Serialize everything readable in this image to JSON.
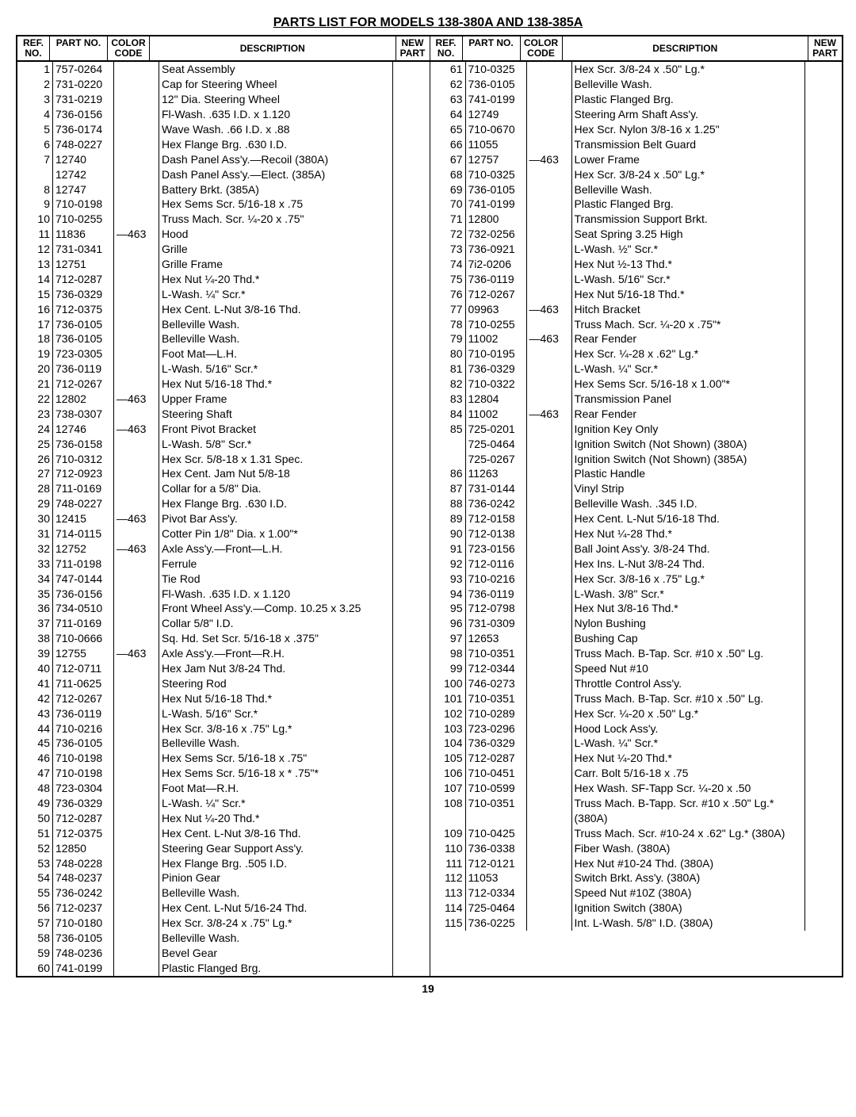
{
  "title": "PARTS LIST FOR MODELS 138-380A AND 138-385A",
  "page_number": "19",
  "headers": {
    "ref": "REF.\nNO.",
    "part": "PART\nNO.",
    "color": "COLOR\nCODE",
    "desc": "DESCRIPTION",
    "new": "NEW\nPART"
  },
  "left_rows": [
    {
      "ref": "1",
      "part": "757-0264",
      "color": "",
      "desc": "Seat Assembly"
    },
    {
      "ref": "2",
      "part": "731-0220",
      "color": "",
      "desc": "Cap for Steering Wheel"
    },
    {
      "ref": "3",
      "part": "731-0219",
      "color": "",
      "desc": "12\" Dia. Steering Wheel"
    },
    {
      "ref": "4",
      "part": "736-0156",
      "color": "",
      "desc": "Fl-Wash. .635 I.D. x 1.120"
    },
    {
      "ref": "5",
      "part": "736-0174",
      "color": "",
      "desc": "Wave Wash. .66 I.D. x .88"
    },
    {
      "ref": "6",
      "part": "748-0227",
      "color": "",
      "desc": "Hex Flange Brg. .630 I.D."
    },
    {
      "ref": "7",
      "part": "12740",
      "color": "",
      "desc": "Dash Panel Ass'y.—Recoil (380A)"
    },
    {
      "ref": "",
      "part": "12742",
      "color": "",
      "desc": "Dash Panel Ass'y.—Elect. (385A)"
    },
    {
      "ref": "8",
      "part": "12747",
      "color": "",
      "desc": "Battery Brkt. (385A)"
    },
    {
      "ref": "9",
      "part": "710-0198",
      "color": "",
      "desc": "Hex Sems Scr. 5/16-18 x .75"
    },
    {
      "ref": "10",
      "part": "710-0255",
      "color": "",
      "desc": "Truss Mach. Scr. ¼-20 x .75\""
    },
    {
      "ref": "11",
      "part": "11836",
      "color": "—463",
      "desc": "Hood"
    },
    {
      "ref": "12",
      "part": "731-0341",
      "color": "",
      "desc": "Grille"
    },
    {
      "ref": "13",
      "part": "12751",
      "color": "",
      "desc": "Grille Frame"
    },
    {
      "ref": "14",
      "part": "712-0287",
      "color": "",
      "desc": "Hex Nut ¼-20 Thd.*"
    },
    {
      "ref": "15",
      "part": "736-0329",
      "color": "",
      "desc": "L-Wash. ¼\" Scr.*"
    },
    {
      "ref": "16",
      "part": "712-0375",
      "color": "",
      "desc": "Hex Cent. L-Nut 3/8-16 Thd."
    },
    {
      "ref": "17",
      "part": "736-0105",
      "color": "",
      "desc": "Belleville Wash."
    },
    {
      "ref": "18",
      "part": "736-0105",
      "color": "",
      "desc": "Belleville Wash."
    },
    {
      "ref": "19",
      "part": "723-0305",
      "color": "",
      "desc": "Foot Mat—L.H."
    },
    {
      "ref": "20",
      "part": "736-0119",
      "color": "",
      "desc": "L-Wash. 5/16\" Scr.*"
    },
    {
      "ref": "21",
      "part": "712-0267",
      "color": "",
      "desc": "Hex Nut 5/16-18 Thd.*"
    },
    {
      "ref": "22",
      "part": "12802",
      "color": "—463",
      "desc": "Upper Frame"
    },
    {
      "ref": "23",
      "part": "738-0307",
      "color": "",
      "desc": "Steering Shaft"
    },
    {
      "ref": "24",
      "part": "12746",
      "color": "—463",
      "desc": "Front Pivot Bracket"
    },
    {
      "ref": "25",
      "part": "736-0158",
      "color": "",
      "desc": "L-Wash. 5/8\" Scr.*"
    },
    {
      "ref": "26",
      "part": "710-0312",
      "color": "",
      "desc": "Hex Scr. 5/8-18 x 1.31 Spec."
    },
    {
      "ref": "27",
      "part": "712-0923",
      "color": "",
      "desc": "Hex Cent. Jam Nut 5/8-18"
    },
    {
      "ref": "28",
      "part": "711-0169",
      "color": "",
      "desc": "Collar for a 5/8\" Dia."
    },
    {
      "ref": "29",
      "part": "748-0227",
      "color": "",
      "desc": "Hex Flange Brg. .630 I.D."
    },
    {
      "ref": "30",
      "part": "12415",
      "color": "—463",
      "desc": "Pivot Bar Ass'y."
    },
    {
      "ref": "31",
      "part": "714-0115",
      "color": "",
      "desc": "Cotter Pin 1/8\" Dia. x 1.00\"*"
    },
    {
      "ref": "32",
      "part": "12752",
      "color": "—463",
      "desc": "Axle Ass'y.—Front—L.H."
    },
    {
      "ref": "33",
      "part": "711-0198",
      "color": "",
      "desc": "Ferrule"
    },
    {
      "ref": "34",
      "part": "747-0144",
      "color": "",
      "desc": "Tie Rod"
    },
    {
      "ref": "35",
      "part": "736-0156",
      "color": "",
      "desc": "Fl-Wash. .635 I.D. x 1.120"
    },
    {
      "ref": "36",
      "part": "734-0510",
      "color": "",
      "desc": "Front Wheel Ass'y.—Comp. 10.25 x 3.25"
    },
    {
      "ref": "37",
      "part": "711-0169",
      "color": "",
      "desc": "Collar 5/8\" I.D."
    },
    {
      "ref": "38",
      "part": "710-0666",
      "color": "",
      "desc": "Sq. Hd. Set Scr. 5/16-18 x .375\""
    },
    {
      "ref": "39",
      "part": "12755",
      "color": "—463",
      "desc": "Axle Ass'y.—Front—R.H."
    },
    {
      "ref": "40",
      "part": "712-0711",
      "color": "",
      "desc": "Hex Jam Nut 3/8-24 Thd."
    },
    {
      "ref": "41",
      "part": "711-0625",
      "color": "",
      "desc": "Steering Rod"
    },
    {
      "ref": "42",
      "part": "712-0267",
      "color": "",
      "desc": "Hex Nut 5/16-18 Thd.*"
    },
    {
      "ref": "43",
      "part": "736-0119",
      "color": "",
      "desc": "L-Wash. 5/16\" Scr.*"
    },
    {
      "ref": "44",
      "part": "710-0216",
      "color": "",
      "desc": "Hex Scr. 3/8-16 x .75\" Lg.*"
    },
    {
      "ref": "45",
      "part": "736-0105",
      "color": "",
      "desc": "Belleville Wash."
    },
    {
      "ref": "46",
      "part": "710-0198",
      "color": "",
      "desc": "Hex Sems Scr. 5/16-18 x .75\""
    },
    {
      "ref": "47",
      "part": "710-0198",
      "color": "",
      "desc": "Hex Sems Scr. 5/16-18 x * .75\"*"
    },
    {
      "ref": "48",
      "part": "723-0304",
      "color": "",
      "desc": "Foot Mat—R.H."
    },
    {
      "ref": "49",
      "part": "736-0329",
      "color": "",
      "desc": "L-Wash. ¼\" Scr.*"
    },
    {
      "ref": "50",
      "part": "712-0287",
      "color": "",
      "desc": "Hex Nut ¼-20 Thd.*"
    },
    {
      "ref": "51",
      "part": "712-0375",
      "color": "",
      "desc": "Hex Cent. L-Nut 3/8-16 Thd."
    },
    {
      "ref": "52",
      "part": "12850",
      "color": "",
      "desc": "Steering Gear Support Ass'y."
    },
    {
      "ref": "53",
      "part": "748-0228",
      "color": "",
      "desc": "Hex Flange Brg. .505 I.D."
    },
    {
      "ref": "54",
      "part": "748-0237",
      "color": "",
      "desc": "Pinion Gear"
    },
    {
      "ref": "55",
      "part": "736-0242",
      "color": "",
      "desc": "Belleville Wash."
    },
    {
      "ref": "56",
      "part": "712-0237",
      "color": "",
      "desc": "Hex Cent. L-Nut 5/16-24 Thd."
    },
    {
      "ref": "57",
      "part": "710-0180",
      "color": "",
      "desc": "Hex Scr. 3/8-24 x .75\" Lg.*"
    },
    {
      "ref": "58",
      "part": "736-0105",
      "color": "",
      "desc": "Belleville Wash."
    },
    {
      "ref": "59",
      "part": "748-0236",
      "color": "",
      "desc": "Bevel Gear"
    },
    {
      "ref": "60",
      "part": "741-0199",
      "color": "",
      "desc": "Plastic Flanged Brg."
    }
  ],
  "right_rows": [
    {
      "ref": "61",
      "part": "710-0325",
      "color": "",
      "desc": "Hex Scr. 3/8-24 x .50\" Lg.*"
    },
    {
      "ref": "62",
      "part": "736-0105",
      "color": "",
      "desc": "Belleville Wash."
    },
    {
      "ref": "63",
      "part": "741-0199",
      "color": "",
      "desc": "Plastic Flanged Brg."
    },
    {
      "ref": "64",
      "part": "12749",
      "color": "",
      "desc": "Steering Arm Shaft Ass'y."
    },
    {
      "ref": "65",
      "part": "710-0670",
      "color": "",
      "desc": "Hex Scr. Nylon 3/8-16 x 1.25\""
    },
    {
      "ref": "66",
      "part": "11055",
      "color": "",
      "desc": "Transmission Belt Guard"
    },
    {
      "ref": "67",
      "part": "12757",
      "color": "—463",
      "desc": "Lower Frame"
    },
    {
      "ref": "68",
      "part": "710-0325",
      "color": "",
      "desc": "Hex Scr. 3/8-24 x .50\" Lg.*"
    },
    {
      "ref": "69",
      "part": "736-0105",
      "color": "",
      "desc": "Belleville Wash."
    },
    {
      "ref": "70",
      "part": "741-0199",
      "color": "",
      "desc": "Plastic Flanged Brg."
    },
    {
      "ref": "71",
      "part": "12800",
      "color": "",
      "desc": "Transmission Support Brkt."
    },
    {
      "ref": "72",
      "part": "732-0256",
      "color": "",
      "desc": "Seat Spring 3.25 High"
    },
    {
      "ref": "73",
      "part": "736-0921",
      "color": "",
      "desc": "L-Wash. ½\" Scr.*"
    },
    {
      "ref": "74",
      "part": "7i2-0206",
      "color": "",
      "desc": "Hex Nut ½-13 Thd.*"
    },
    {
      "ref": "75",
      "part": "736-0119",
      "color": "",
      "desc": "L-Wash. 5/16\" Scr.*"
    },
    {
      "ref": "76",
      "part": "712-0267",
      "color": "",
      "desc": "Hex Nut 5/16-18 Thd.*"
    },
    {
      "ref": "77",
      "part": "09963",
      "color": "—463",
      "desc": "Hitch Bracket"
    },
    {
      "ref": "78",
      "part": "710-0255",
      "color": "",
      "desc": "Truss Mach. Scr. ¼-20 x .75\"*"
    },
    {
      "ref": "79",
      "part": "11002",
      "color": "—463",
      "desc": "Rear Fender"
    },
    {
      "ref": "80",
      "part": "710-0195",
      "color": "",
      "desc": "Hex Scr. ¼-28 x .62\" Lg.*"
    },
    {
      "ref": "81",
      "part": "736-0329",
      "color": "",
      "desc": "L-Wash. ¼\" Scr.*"
    },
    {
      "ref": "82",
      "part": "710-0322",
      "color": "",
      "desc": "Hex Sems Scr. 5/16-18 x 1.00\"*"
    },
    {
      "ref": "83",
      "part": "12804",
      "color": "",
      "desc": "Transmission Panel"
    },
    {
      "ref": "84",
      "part": "11002",
      "color": "—463",
      "desc": "Rear Fender"
    },
    {
      "ref": "85",
      "part": "725-0201",
      "color": "",
      "desc": "Ignition Key Only"
    },
    {
      "ref": "",
      "part": "725-0464",
      "color": "",
      "desc": "Ignition Switch (Not Shown) (380A)"
    },
    {
      "ref": "",
      "part": "725-0267",
      "color": "",
      "desc": "Ignition Switch (Not Shown) (385A)"
    },
    {
      "ref": "86",
      "part": "11263",
      "color": "",
      "desc": "Plastic Handle"
    },
    {
      "ref": "87",
      "part": "731-0144",
      "color": "",
      "desc": "Vinyl Strip"
    },
    {
      "ref": "88",
      "part": "736-0242",
      "color": "",
      "desc": "Belleville Wash. .345 I.D."
    },
    {
      "ref": "89",
      "part": "712-0158",
      "color": "",
      "desc": "Hex Cent. L-Nut 5/16-18 Thd."
    },
    {
      "ref": "90",
      "part": "712-0138",
      "color": "",
      "desc": "Hex Nut ¼-28 Thd.*"
    },
    {
      "ref": "91",
      "part": "723-0156",
      "color": "",
      "desc": "Ball Joint Ass'y. 3/8-24 Thd."
    },
    {
      "ref": "92",
      "part": "712-0116",
      "color": "",
      "desc": "Hex Ins. L-Nut 3/8-24 Thd."
    },
    {
      "ref": "93",
      "part": "710-0216",
      "color": "",
      "desc": "Hex Scr. 3/8-16 x .75\" Lg.*"
    },
    {
      "ref": "94",
      "part": "736-0119",
      "color": "",
      "desc": "L-Wash. 3/8\" Scr.*"
    },
    {
      "ref": "95",
      "part": "712-0798",
      "color": "",
      "desc": "Hex Nut 3/8-16 Thd.*"
    },
    {
      "ref": "96",
      "part": "731-0309",
      "color": "",
      "desc": "Nylon Bushing"
    },
    {
      "ref": "97",
      "part": "12653",
      "color": "",
      "desc": "Bushing Cap"
    },
    {
      "ref": "98",
      "part": "710-0351",
      "color": "",
      "desc": "Truss Mach. B-Tap. Scr. #10 x .50\" Lg."
    },
    {
      "ref": "99",
      "part": "712-0344",
      "color": "",
      "desc": "Speed Nut #10"
    },
    {
      "ref": "100",
      "part": "746-0273",
      "color": "",
      "desc": "Throttle Control Ass'y."
    },
    {
      "ref": "101",
      "part": "710-0351",
      "color": "",
      "desc": "Truss Mach. B-Tap. Scr. #10 x .50\" Lg."
    },
    {
      "ref": "102",
      "part": "710-0289",
      "color": "",
      "desc": "Hex Scr. ¼-20 x .50\" Lg.*"
    },
    {
      "ref": "103",
      "part": "723-0296",
      "color": "",
      "desc": "Hood Lock Ass'y."
    },
    {
      "ref": "104",
      "part": "736-0329",
      "color": "",
      "desc": "L-Wash. ¼\" Scr.*"
    },
    {
      "ref": "105",
      "part": "712-0287",
      "color": "",
      "desc": "Hex Nut ¼-20 Thd.*"
    },
    {
      "ref": "106",
      "part": "710-0451",
      "color": "",
      "desc": "Carr. Bolt 5/16-18 x .75"
    },
    {
      "ref": "107",
      "part": "710-0599",
      "color": "",
      "desc": "Hex Wash. SF-Tapp Scr. ¼-20 x .50"
    },
    {
      "ref": "108",
      "part": "710-0351",
      "color": "",
      "desc": "Truss Mach. B-Tapp. Scr. #10 x .50\" Lg.* (380A)"
    },
    {
      "ref": "109",
      "part": "710-0425",
      "color": "",
      "desc": "Truss Mach. Scr. #10-24 x .62\" Lg.* (380A)"
    },
    {
      "ref": "110",
      "part": "736-0338",
      "color": "",
      "desc": "Fiber Wash. (380A)"
    },
    {
      "ref": "111",
      "part": "712-0121",
      "color": "",
      "desc": "Hex Nut #10-24 Thd. (380A)"
    },
    {
      "ref": "112",
      "part": "11053",
      "color": "",
      "desc": "Switch Brkt. Ass'y. (380A)"
    },
    {
      "ref": "113",
      "part": "712-0334",
      "color": "",
      "desc": "Speed Nut #10Z (380A)"
    },
    {
      "ref": "114",
      "part": "725-0464",
      "color": "",
      "desc": "Ignition Switch (380A)"
    },
    {
      "ref": "115",
      "part": "736-0225",
      "color": "",
      "desc": "Int. L-Wash. 5/8\" I.D. (380A)"
    }
  ]
}
